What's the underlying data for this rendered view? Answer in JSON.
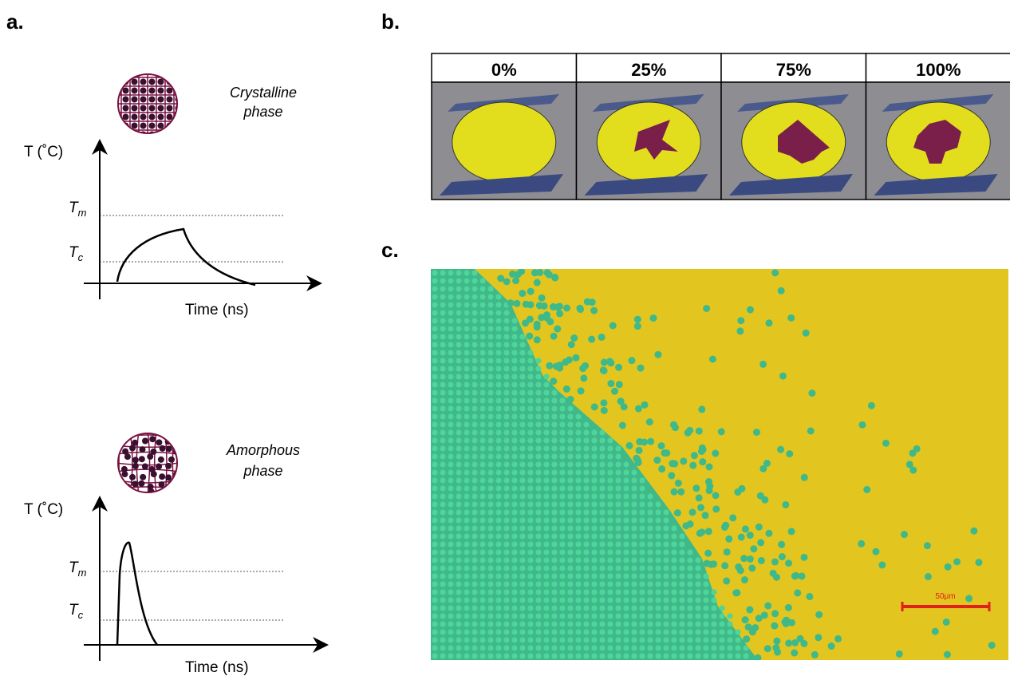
{
  "panel_a": {
    "label": "a.",
    "top": {
      "phase_label": [
        "Crystalline",
        "phase"
      ],
      "y_axis_label": "T (˚C)",
      "x_axis_label": "Time (ns)",
      "levels": [
        {
          "symbol": "T",
          "subscript": "m"
        },
        {
          "symbol": "T",
          "subscript": "c"
        }
      ]
    },
    "bottom": {
      "phase_label": [
        "Amorphous",
        "phase"
      ],
      "y_axis_label": "T (˚C)",
      "x_axis_label": "Time (ns)",
      "levels": [
        {
          "symbol": "T",
          "subscript": "m"
        },
        {
          "symbol": "T",
          "subscript": "c"
        }
      ]
    }
  },
  "panel_b": {
    "label": "b.",
    "columns": [
      "0%",
      "25%",
      "75%",
      "100%"
    ]
  },
  "panel_c": {
    "label": "c.",
    "scale_bar": "50μm"
  }
}
